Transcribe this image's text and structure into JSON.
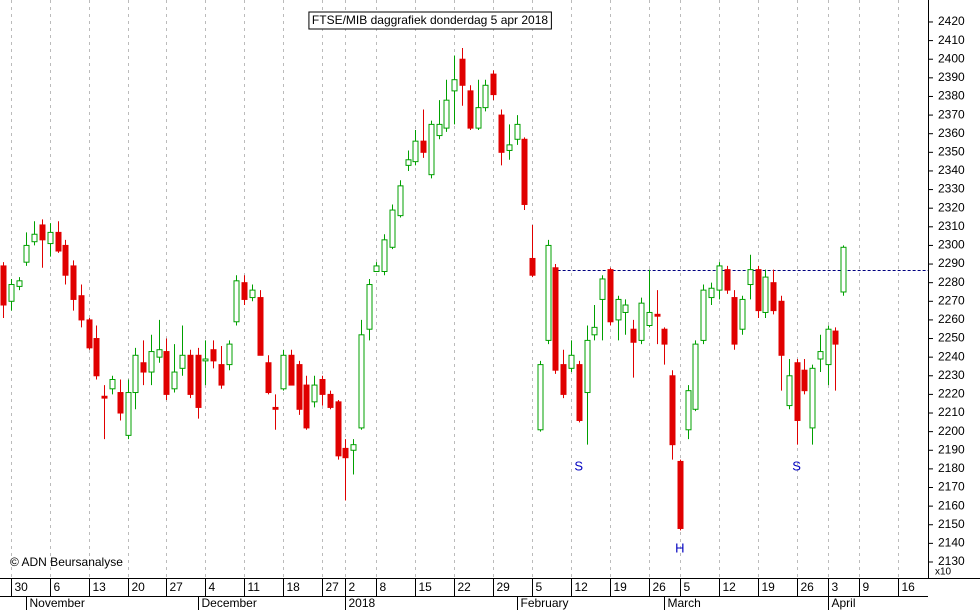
{
  "chart_data": {
    "type": "candlestick",
    "title": "FTSE/MIB daggrafiek donderdag 5 apr 2018",
    "credit": "© ADN Beursanalyse",
    "y_unit_note": "x10",
    "up_color": "#00a000",
    "down_color": "#e00000",
    "reference_color": "#000080",
    "open": [
      2289,
      2270,
      2278,
      2291,
      2302,
      2311,
      2301,
      2307,
      2300,
      2289,
      2273,
      2260,
      2250,
      2219,
      2223,
      2221,
      2198,
      2221,
      2237,
      2232,
      2240,
      2243,
      2223,
      2234,
      2241,
      2241,
      2238,
      2244,
      2236,
      2236,
      2259,
      2280,
      2272,
      2272,
      2237,
      2213,
      2223,
      2241,
      2236,
      2225,
      2216,
      2228,
      2220,
      2216,
      2191,
      2190,
      2202,
      2255,
      2286,
      2286,
      2299,
      2316,
      2343,
      2345,
      2356,
      2338,
      2359,
      2363,
      2383,
      2400,
      2383,
      2363,
      2374,
      2392,
      2370,
      2351,
      2357,
      2357,
      2293,
      2201,
      2249,
      2288,
      2236,
      2234,
      2236,
      2221,
      2252,
      2271,
      2287,
      2260,
      2264,
      2255,
      2249,
      2257,
      2263,
      2255,
      2230,
      2184,
      2201,
      2212,
      2249,
      2272,
      2276,
      2287,
      2272,
      2255,
      2279,
      2287,
      2264,
      2280,
      2270,
      2214,
      2237,
      2233,
      2202,
      2239,
      2236,
      2254,
      2275
    ],
    "high": [
      2291,
      2282,
      2283,
      2307,
      2313,
      2314,
      2312,
      2313,
      2303,
      2292,
      2279,
      2261,
      2257,
      2225,
      2230,
      2228,
      2228,
      2245,
      2249,
      2252,
      2260,
      2250,
      2247,
      2257,
      2244,
      2245,
      2249,
      2249,
      2246,
      2249,
      2284,
      2284,
      2279,
      2276,
      2241,
      2220,
      2244,
      2244,
      2238,
      2230,
      2230,
      2230,
      2222,
      2217,
      2196,
      2196,
      2260,
      2282,
      2291,
      2306,
      2322,
      2335,
      2351,
      2362,
      2373,
      2367,
      2378,
      2389,
      2402,
      2406,
      2386,
      2389,
      2389,
      2394,
      2373,
      2365,
      2370,
      2358,
      2311,
      2238,
      2303,
      2290,
      2244,
      2249,
      2238,
      2257,
      2268,
      2284,
      2288,
      2273,
      2271,
      2260,
      2272,
      2287,
      2276,
      2256,
      2233,
      2185,
      2225,
      2249,
      2279,
      2280,
      2291,
      2289,
      2276,
      2273,
      2295,
      2289,
      2287,
      2287,
      2273,
      2239,
      2239,
      2239,
      2236,
      2252,
      2257,
      2256,
      2300
    ],
    "low": [
      2261,
      2265,
      2276,
      2289,
      2300,
      2288,
      2294,
      2296,
      2279,
      2265,
      2256,
      2244,
      2228,
      2196,
      2220,
      2206,
      2196,
      2212,
      2225,
      2225,
      2237,
      2217,
      2221,
      2230,
      2218,
      2207,
      2225,
      2234,
      2223,
      2233,
      2257,
      2268,
      2270,
      2241,
      2220,
      2201,
      2222,
      2225,
      2209,
      2201,
      2213,
      2214,
      2212,
      2185,
      2163,
      2177,
      2201,
      2249,
      2286,
      2284,
      2298,
      2315,
      2340,
      2343,
      2347,
      2336,
      2357,
      2361,
      2365,
      2375,
      2362,
      2362,
      2372,
      2378,
      2343,
      2346,
      2354,
      2319,
      2283,
      2200,
      2247,
      2231,
      2218,
      2232,
      2205,
      2193,
      2249,
      2249,
      2257,
      2249,
      2252,
      2229,
      2247,
      2256,
      2247,
      2236,
      2185,
      2147,
      2196,
      2211,
      2247,
      2268,
      2271,
      2274,
      2244,
      2252,
      2271,
      2261,
      2261,
      2263,
      2222,
      2212,
      2193,
      2220,
      2193,
      2232,
      2225,
      2222,
      2273
    ],
    "close": [
      2268,
      2279,
      2281,
      2300,
      2306,
      2303,
      2307,
      2297,
      2284,
      2271,
      2260,
      2245,
      2230,
      2218,
      2228,
      2210,
      2221,
      2241,
      2232,
      2243,
      2244,
      2220,
      2232,
      2241,
      2220,
      2213,
      2239,
      2238,
      2225,
      2247,
      2281,
      2271,
      2276,
      2241,
      2221,
      2212,
      2241,
      2225,
      2212,
      2202,
      2225,
      2220,
      2213,
      2187,
      2186,
      2193,
      2252,
      2279,
      2289,
      2303,
      2319,
      2332,
      2346,
      2356,
      2350,
      2365,
      2365,
      2378,
      2389,
      2386,
      2363,
      2374,
      2386,
      2381,
      2350,
      2354,
      2365,
      2322,
      2284,
      2236,
      2300,
      2233,
      2220,
      2241,
      2206,
      2249,
      2256,
      2282,
      2259,
      2271,
      2268,
      2248,
      2269,
      2264,
      2262,
      2247,
      2193,
      2148,
      2222,
      2247,
      2276,
      2277,
      2289,
      2276,
      2247,
      2271,
      2287,
      2265,
      2283,
      2265,
      2241,
      2230,
      2206,
      2222,
      2234,
      2243,
      2255,
      2247,
      2299
    ],
    "reference_line": {
      "value": 2287,
      "start": 70
    },
    "annotations": [
      {
        "text": "S",
        "x": 74,
        "y": 2181
      },
      {
        "text": "H",
        "x": 87,
        "y": 2137
      },
      {
        "text": "S",
        "x": 102,
        "y": 2181
      }
    ],
    "xlim": [
      -0.4,
      118.9
    ],
    "xticks": [
      {
        "value": 1,
        "label": "30"
      },
      {
        "value": 6,
        "label": "6"
      },
      {
        "value": 11,
        "label": "13"
      },
      {
        "value": 16,
        "label": "20"
      },
      {
        "value": 21,
        "label": "27"
      },
      {
        "value": 26,
        "label": "4"
      },
      {
        "value": 31,
        "label": "11"
      },
      {
        "value": 36,
        "label": "18"
      },
      {
        "value": 41,
        "label": "27"
      },
      {
        "value": 44,
        "label": "2"
      },
      {
        "value": 48,
        "label": "8"
      },
      {
        "value": 53,
        "label": "15"
      },
      {
        "value": 58,
        "label": "22"
      },
      {
        "value": 63,
        "label": "29"
      },
      {
        "value": 68,
        "label": "5"
      },
      {
        "value": 73,
        "label": "12"
      },
      {
        "value": 78,
        "label": "19"
      },
      {
        "value": 83,
        "label": "26"
      },
      {
        "value": 87,
        "label": "5"
      },
      {
        "value": 92,
        "label": "12"
      },
      {
        "value": 97,
        "label": "19"
      },
      {
        "value": 102,
        "label": "26"
      },
      {
        "value": 106,
        "label": "3"
      },
      {
        "value": 110,
        "label": "9"
      },
      {
        "value": 115,
        "label": "16"
      }
    ],
    "month_ticks": [
      {
        "value": 3,
        "label": "November"
      },
      {
        "value": 25,
        "label": "December"
      },
      {
        "value": 44,
        "label": "2018"
      },
      {
        "value": 66,
        "label": "February"
      },
      {
        "value": 85,
        "label": "March"
      },
      {
        "value": 106,
        "label": "April"
      }
    ],
    "ylim": [
      2121.4,
      2431.8
    ],
    "yticks": [
      2130,
      2140,
      2150,
      2160,
      2170,
      2180,
      2190,
      2200,
      2210,
      2220,
      2230,
      2240,
      2250,
      2260,
      2270,
      2280,
      2290,
      2300,
      2310,
      2320,
      2330,
      2340,
      2350,
      2360,
      2370,
      2380,
      2390,
      2400,
      2410,
      2420
    ],
    "grid": true
  }
}
